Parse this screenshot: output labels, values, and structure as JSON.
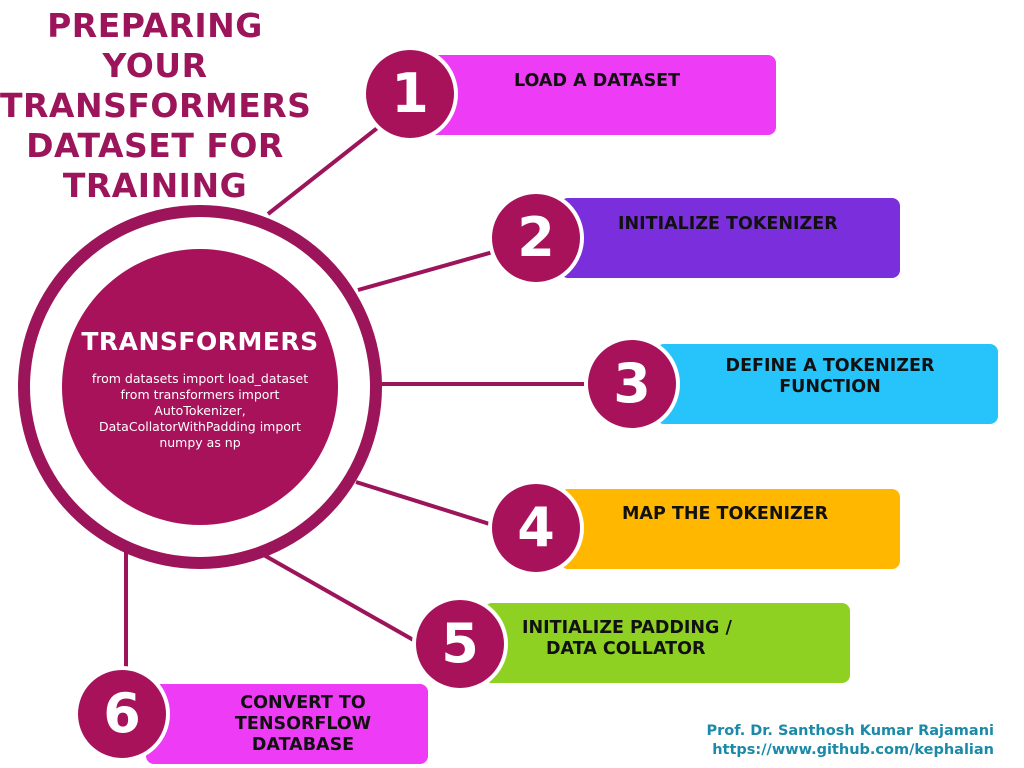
{
  "title": {
    "lines": [
      "PREPARING",
      "YOUR",
      "TRANSFORMERS",
      "DATASET FOR",
      "TRAINING"
    ]
  },
  "hub": {
    "title": "TRANSFORMERS",
    "code_lines": [
      "from datasets import load_dataset",
      "from transformers import",
      "AutoTokenizer,",
      "DataCollatorWithPadding import",
      "numpy as np"
    ]
  },
  "steps": [
    {
      "number": "1",
      "lines": [
        "LOAD A DATASET"
      ],
      "color": "#ee3bf5"
    },
    {
      "number": "2",
      "lines": [
        "INITIALIZE TOKENIZER"
      ],
      "color": "#7b2fdc"
    },
    {
      "number": "3",
      "lines": [
        "DEFINE A TOKENIZER",
        "FUNCTION"
      ],
      "color": "#27c3fb"
    },
    {
      "number": "4",
      "lines": [
        "MAP THE TOKENIZER"
      ],
      "color": "#ffb700"
    },
    {
      "number": "5",
      "lines": [
        "INITIALIZE PADDING /",
        "DATA COLLATOR"
      ],
      "color": "#8ed123"
    },
    {
      "number": "6",
      "lines": [
        "CONVERT TO",
        "TENSORFLOW",
        "DATABASE"
      ],
      "color": "#ee3bf5"
    }
  ],
  "credit": {
    "author": "Prof. Dr. Santhosh Kumar Rajamani",
    "url": "https://www.github.com/kephalian"
  },
  "colors": {
    "accent": "#9c1459",
    "hub_fill": "#a8125a",
    "credit_text": "#1a8aa8"
  }
}
